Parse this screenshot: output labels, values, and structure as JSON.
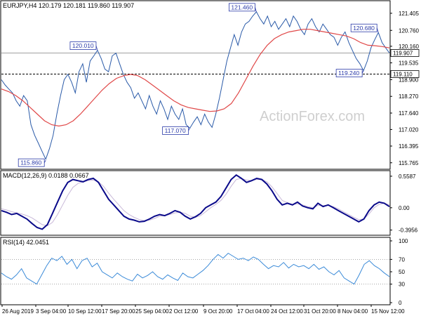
{
  "chart_data": [
    {
      "type": "line",
      "panel": "price",
      "title": "EURJPY,H4  120.179 120.181 119.860 119.907",
      "watermark": "ActionForex.com",
      "ylim": [
        115.6,
        121.8
      ],
      "yticks": [
        {
          "value": 121.405,
          "label": "121.405"
        },
        {
          "value": 120.76,
          "label": "120.760"
        },
        {
          "value": 120.16,
          "label": "120.160"
        },
        {
          "value": 119.535,
          "label": "119.535"
        },
        {
          "value": 118.9,
          "label": "118.900"
        },
        {
          "value": 118.27,
          "label": "118.270"
        },
        {
          "value": 117.64,
          "label": "117.640"
        },
        {
          "value": 117.02,
          "label": "117.020"
        },
        {
          "value": 116.395,
          "label": "116.395"
        },
        {
          "value": 115.765,
          "label": "115.765"
        }
      ],
      "price_tag": {
        "value": 119.907,
        "label": "119.907"
      },
      "levels": [
        {
          "value": 119.11,
          "label": "119.110",
          "style": "dashed"
        },
        {
          "value": 119.907,
          "style": "solid-gray"
        }
      ],
      "series": [
        {
          "name": "price",
          "color": "#2a5aa8",
          "values": [
            118.9,
            118.7,
            118.55,
            118.4,
            118.1,
            117.9,
            118.3,
            118.1,
            117.2,
            116.8,
            116.5,
            116.2,
            115.9,
            116.3,
            116.8,
            117.6,
            118.3,
            118.9,
            119.1,
            118.8,
            118.4,
            119.2,
            119.5,
            118.8,
            119.6,
            119.8,
            120.01,
            119.7,
            119.3,
            119.2,
            119.8,
            119.9,
            119.5,
            119.1,
            118.8,
            118.6,
            118.2,
            118.4,
            118.1,
            117.8,
            118.3,
            117.9,
            117.6,
            118.1,
            117.8,
            117.4,
            117.9,
            117.6,
            117.4,
            117.8,
            117.2,
            117.07,
            117.3,
            117.5,
            117.2,
            117.6,
            117.3,
            117.1,
            117.6,
            118.2,
            118.9,
            119.6,
            120.1,
            120.6,
            120.2,
            120.7,
            121.0,
            121.1,
            121.3,
            121.46,
            121.2,
            121.0,
            121.3,
            120.9,
            121.1,
            120.8,
            121.0,
            121.2,
            120.9,
            121.3,
            121.1,
            120.8,
            120.6,
            121.0,
            121.2,
            120.9,
            120.7,
            121.0,
            120.8,
            120.6,
            120.5,
            120.2,
            120.5,
            120.7,
            120.3,
            120.0,
            119.7,
            119.5,
            119.24,
            119.6,
            120.1,
            120.4,
            120.68,
            120.3,
            120.1,
            119.907
          ]
        },
        {
          "name": "moving average",
          "color": "#e04848",
          "values": [
            118.55,
            118.45,
            118.3,
            118.1,
            117.85,
            117.6,
            117.35,
            117.2,
            117.15,
            117.2,
            117.35,
            117.6,
            117.9,
            118.2,
            118.5,
            118.75,
            118.95,
            119.05,
            119.1,
            119.05,
            118.9,
            118.7,
            118.5,
            118.3,
            118.1,
            117.95,
            117.85,
            117.8,
            117.75,
            117.7,
            117.72,
            117.8,
            118.0,
            118.4,
            118.9,
            119.4,
            119.85,
            120.2,
            120.45,
            120.6,
            120.7,
            120.75,
            120.8,
            120.8,
            120.75,
            120.7,
            120.65,
            120.6,
            120.55,
            120.45,
            120.3,
            120.2,
            120.18,
            120.15,
            120.1
          ]
        }
      ],
      "annotations": [
        {
          "label": "120.010",
          "value": 120.01
        },
        {
          "label": "115.860",
          "value": 115.86
        },
        {
          "label": "117.070",
          "value": 117.07
        },
        {
          "label": "121.460",
          "value": 121.46
        },
        {
          "label": "120.680",
          "value": 120.68
        },
        {
          "label": "119.240",
          "value": 119.24
        }
      ]
    },
    {
      "type": "line",
      "panel": "macd",
      "title": "MACD(12,26,9) 0.0188 0.0667",
      "ylim": [
        -0.45,
        0.62
      ],
      "yticks": [
        {
          "value": 0.5587,
          "label": "0.5587"
        },
        {
          "value": 0.0,
          "label": "0.00"
        },
        {
          "value": -0.3956,
          "label": "-0.3956"
        }
      ],
      "series": [
        {
          "name": "macd",
          "color": "#0a0a8a",
          "values": [
            -0.05,
            -0.08,
            -0.12,
            -0.1,
            -0.15,
            -0.2,
            -0.28,
            -0.35,
            -0.38,
            -0.3,
            -0.1,
            0.1,
            0.3,
            0.45,
            0.5,
            0.48,
            0.46,
            0.5,
            0.52,
            0.45,
            0.3,
            0.15,
            0.05,
            -0.05,
            -0.15,
            -0.2,
            -0.22,
            -0.25,
            -0.24,
            -0.2,
            -0.15,
            -0.12,
            -0.14,
            -0.1,
            -0.05,
            -0.08,
            -0.15,
            -0.2,
            -0.16,
            -0.1,
            0.0,
            0.05,
            0.1,
            0.2,
            0.35,
            0.5,
            0.58,
            0.52,
            0.45,
            0.48,
            0.52,
            0.5,
            0.42,
            0.3,
            0.15,
            0.05,
            0.08,
            0.05,
            0.1,
            0.03,
            0.0,
            -0.02,
            0.08,
            0.02,
            0.05,
            0.0,
            -0.05,
            -0.1,
            -0.15,
            -0.2,
            -0.25,
            -0.2,
            -0.05,
            0.05,
            0.1,
            0.08,
            0.02
          ]
        },
        {
          "name": "signal",
          "color": "#c8b8d8",
          "values": [
            -0.02,
            -0.04,
            -0.07,
            -0.09,
            -0.11,
            -0.14,
            -0.18,
            -0.24,
            -0.3,
            -0.32,
            -0.26,
            -0.12,
            0.05,
            0.22,
            0.36,
            0.43,
            0.46,
            0.48,
            0.49,
            0.46,
            0.38,
            0.26,
            0.15,
            0.05,
            -0.05,
            -0.12,
            -0.17,
            -0.21,
            -0.23,
            -0.22,
            -0.19,
            -0.15,
            -0.14,
            -0.12,
            -0.09,
            -0.08,
            -0.1,
            -0.15,
            -0.17,
            -0.14,
            -0.07,
            0.0,
            0.06,
            0.13,
            0.24,
            0.38,
            0.5,
            0.52,
            0.49,
            0.48,
            0.5,
            0.5,
            0.46,
            0.37,
            0.25,
            0.13,
            0.09,
            0.06,
            0.07,
            0.05,
            0.02,
            0.0,
            0.04,
            0.04,
            0.04,
            0.02,
            -0.02,
            -0.07,
            -0.12,
            -0.17,
            -0.21,
            -0.2,
            -0.11,
            0.0,
            0.06,
            0.08,
            0.05
          ]
        }
      ]
    },
    {
      "type": "line",
      "panel": "rsi",
      "title": "RSI(14) 42.0451",
      "ylim": [
        0,
        100
      ],
      "yticks": [
        {
          "value": 100,
          "label": "100"
        },
        {
          "value": 70,
          "label": "70"
        },
        {
          "value": 50,
          "label": "50"
        },
        {
          "value": 30,
          "label": "30"
        },
        {
          "value": 0,
          "label": "0"
        }
      ],
      "levels": [
        {
          "value": 70,
          "style": "dotted"
        },
        {
          "value": 30,
          "style": "dotted"
        }
      ],
      "series": [
        {
          "name": "rsi",
          "color": "#3a8ad8",
          "values": [
            48,
            42,
            38,
            45,
            55,
            40,
            35,
            30,
            45,
            60,
            72,
            68,
            75,
            62,
            70,
            55,
            68,
            72,
            58,
            64,
            50,
            45,
            40,
            48,
            42,
            38,
            35,
            46,
            40,
            44,
            50,
            42,
            38,
            45,
            40,
            36,
            48,
            42,
            40,
            46,
            52,
            60,
            70,
            78,
            72,
            80,
            75,
            70,
            72,
            68,
            74,
            70,
            62,
            55,
            60,
            58,
            65,
            56,
            62,
            58,
            60,
            55,
            62,
            54,
            58,
            50,
            45,
            52,
            40,
            35,
            30,
            45,
            62,
            68,
            60,
            55,
            48,
            42
          ]
        }
      ]
    }
  ],
  "xaxis": {
    "labels": [
      "26 Aug 2019",
      "3 Sep 04:00",
      "10 Sep 12:00",
      "17 Sep 20:00",
      "25 Sep 04:00",
      "2 Oct 12:00",
      "9 Oct 20:00",
      "17 Oct 04:00",
      "24 Oct 12:00",
      "31 Oct 20:00",
      "8 Nov 04:00",
      "15 Nov 12:00"
    ]
  }
}
